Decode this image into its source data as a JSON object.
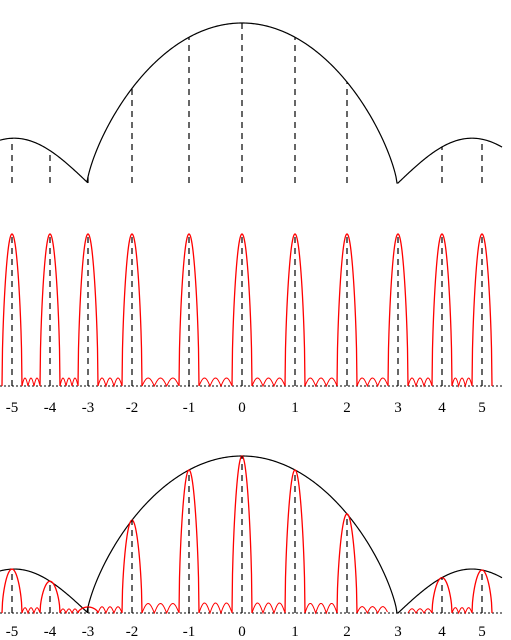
{
  "colors": {
    "background": "#ffffff",
    "envelope": "#000000",
    "fringes": "#ff0000",
    "markers": "#000000"
  },
  "middle_panel": {
    "tick_labels": [
      "-5",
      "-4",
      "-3",
      "-2",
      "-1",
      "0",
      "1",
      "2",
      "3",
      "4",
      "5"
    ]
  },
  "bottom_panel": {
    "tick_labels": [
      "-5",
      "-4",
      "-3",
      "-2",
      "-1",
      "0",
      "1",
      "2",
      "3",
      "4",
      "5"
    ]
  }
}
